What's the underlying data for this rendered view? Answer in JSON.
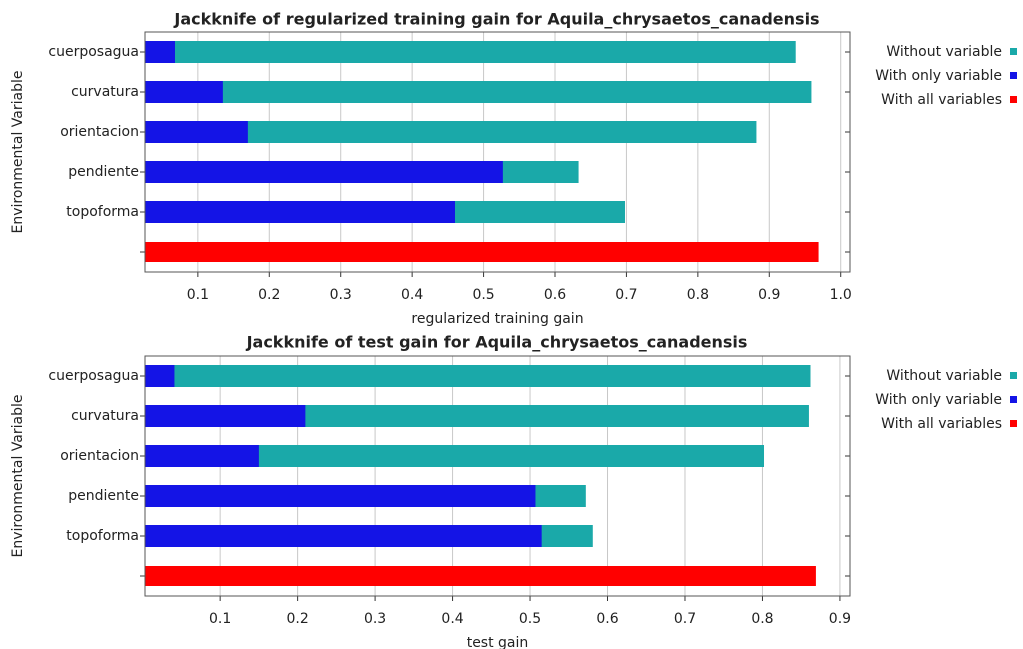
{
  "chart_data": [
    {
      "type": "bar",
      "orientation": "horizontal",
      "title": "Jackknife of regularized training gain for Aquila_chrysaetos_canadensis",
      "xlabel": "regularized training gain",
      "ylabel": "Environmental Variable",
      "categories": [
        "cuerposagua",
        "curvatura",
        "orientacion",
        "pendiente",
        "topoforma",
        null
      ],
      "series": [
        {
          "name": "Without variable",
          "color": "#1aa9a9",
          "values": [
            0.937,
            0.959,
            0.882,
            0.633,
            0.698,
            null
          ]
        },
        {
          "name": "With only variable",
          "color": "#1414e6",
          "values": [
            0.068,
            0.135,
            0.17,
            0.527,
            0.46,
            null
          ]
        },
        {
          "name": "With all variables",
          "color": "#ff0000",
          "values": [
            null,
            null,
            null,
            null,
            null,
            0.969
          ]
        }
      ],
      "xlim": [
        0.026,
        1.013
      ],
      "xticks": [
        0.1,
        0.2,
        0.3,
        0.4,
        0.5,
        0.6,
        0.7,
        0.8,
        0.9,
        {
          "value": 1.0,
          "label": "1.0"
        }
      ],
      "grid": true,
      "legend": "right"
    },
    {
      "type": "bar",
      "orientation": "horizontal",
      "title": "Jackknife of test gain for Aquila_chrysaetos_canadensis",
      "xlabel": "test gain",
      "ylabel": "Environmental Variable",
      "categories": [
        "cuerposagua",
        "curvatura",
        "orientacion",
        "pendiente",
        "topoforma",
        null
      ],
      "series": [
        {
          "name": "Without variable",
          "color": "#1aa9a9",
          "values": [
            0.862,
            0.86,
            0.802,
            0.572,
            0.581,
            null
          ]
        },
        {
          "name": "With only variable",
          "color": "#1414e6",
          "values": [
            0.041,
            0.21,
            0.15,
            0.507,
            0.515,
            null
          ]
        },
        {
          "name": "With all variables",
          "color": "#ff0000",
          "values": [
            null,
            null,
            null,
            null,
            null,
            0.869
          ]
        }
      ],
      "xlim": [
        0.003,
        0.913
      ],
      "xticks": [
        0.1,
        0.2,
        0.3,
        0.4,
        0.5,
        0.6,
        0.7,
        0.8,
        0.9
      ],
      "grid": true,
      "legend": "right"
    }
  ]
}
